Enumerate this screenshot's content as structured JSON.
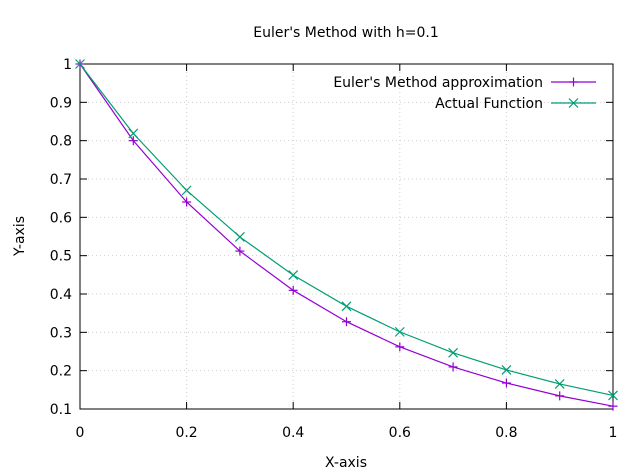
{
  "chart_data": {
    "type": "line",
    "title": "Euler's Method with h=0.1",
    "xlabel": "X-axis",
    "ylabel": "Y-axis",
    "xlim": [
      0,
      1
    ],
    "ylim": [
      0.1,
      1
    ],
    "grid": true,
    "legend_position": "top-right",
    "x_ticks": [
      "0",
      "0.2",
      "0.4",
      "0.6",
      "0.8",
      "1"
    ],
    "y_ticks": [
      "0.1",
      "0.2",
      "0.3",
      "0.4",
      "0.5",
      "0.6",
      "0.7",
      "0.8",
      "0.9",
      "1"
    ],
    "x": [
      0,
      0.1,
      0.2,
      0.3,
      0.4,
      0.5,
      0.6,
      0.7,
      0.8,
      0.9,
      1.0
    ],
    "series": [
      {
        "name": "Euler's Method approximation",
        "color": "#9400d3",
        "marker": "plus",
        "values": [
          1.0,
          0.8,
          0.64,
          0.512,
          0.4096,
          0.32768,
          0.262144,
          0.209715,
          0.167772,
          0.134218,
          0.107374
        ]
      },
      {
        "name": "Actual Function",
        "color": "#009e73",
        "marker": "cross",
        "values": [
          1.0,
          0.818731,
          0.67032,
          0.548812,
          0.449329,
          0.367879,
          0.301194,
          0.246597,
          0.201897,
          0.165299,
          0.135335
        ]
      }
    ]
  }
}
